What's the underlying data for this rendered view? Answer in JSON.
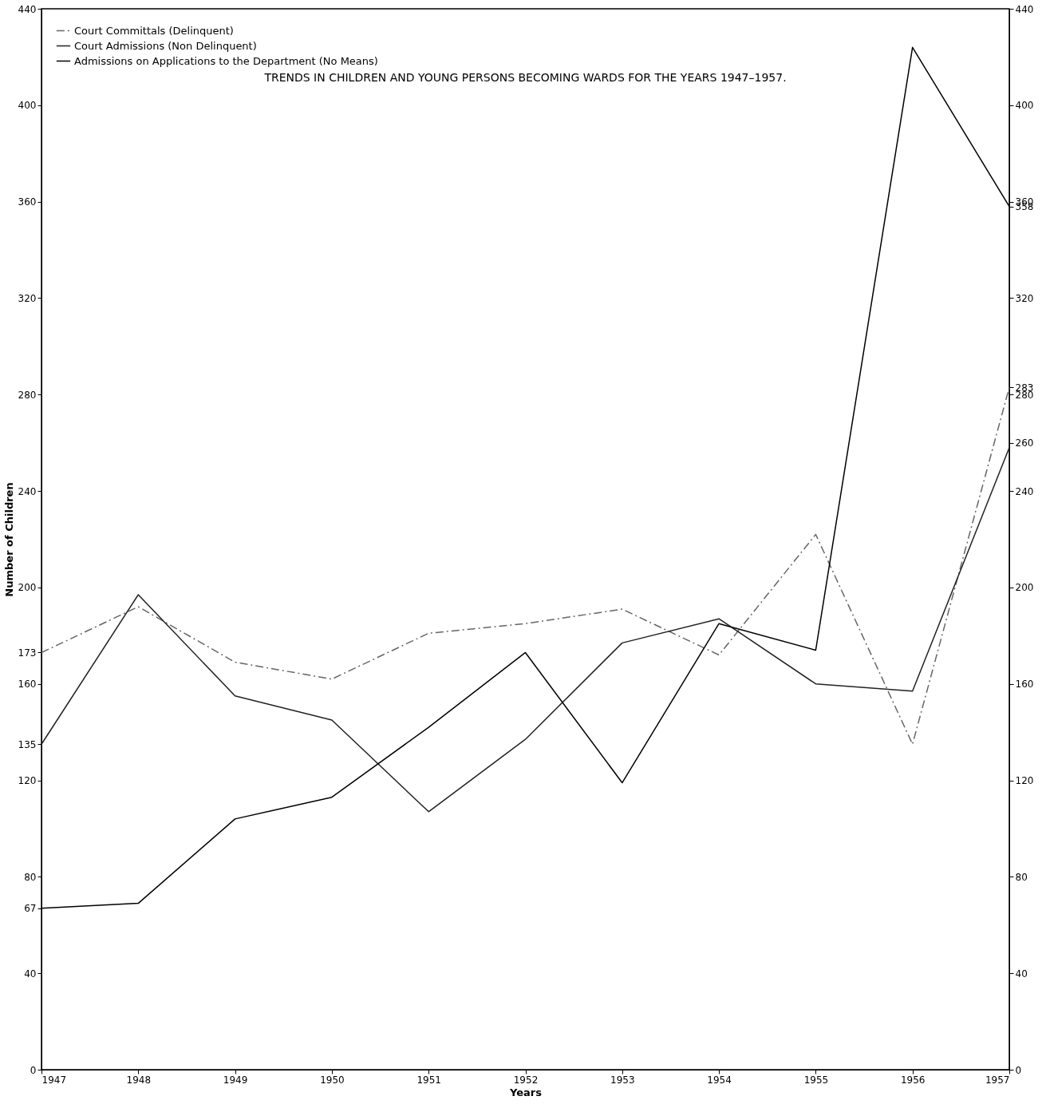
{
  "chart_data": {
    "type": "line",
    "title": "TRENDS IN CHILDREN AND YOUNG PERSONS BECOMING WARDS FOR THE YEARS 1947–1957.",
    "xlabel": "Years",
    "ylabel": "Number of Children",
    "x": [
      1947,
      1948,
      1949,
      1950,
      1951,
      1952,
      1953,
      1954,
      1955,
      1956,
      1957
    ],
    "series": [
      {
        "name": "Court Committals (Delinquent)",
        "color": "#666666",
        "line_style": "dashed",
        "values": [
          173,
          192,
          169,
          162,
          181,
          185,
          191,
          172,
          222,
          135,
          283
        ]
      },
      {
        "name": "Court Admissions (Non Delinquent)",
        "color": "#222222",
        "line_style": "solid",
        "values": [
          135,
          197,
          155,
          145,
          107,
          137,
          177,
          187,
          160,
          157,
          258
        ]
      },
      {
        "name": "Admissions on Applications to the Department (No Means)",
        "color": "#000000",
        "line_style": "solid",
        "values": [
          67,
          69,
          104,
          113,
          142,
          173,
          119,
          185,
          174,
          424,
          358
        ]
      }
    ],
    "xlim": [
      1947,
      1957
    ],
    "xticks": [
      1947,
      1948,
      1949,
      1950,
      1951,
      1952,
      1953,
      1954,
      1955,
      1956,
      1957
    ],
    "ylim": [
      0,
      440
    ],
    "yticks": [
      0,
      40,
      67,
      80,
      120,
      135,
      160,
      173,
      200,
      240,
      280,
      320,
      360,
      400,
      440
    ],
    "y2lim": [
      0,
      440
    ],
    "y2ticks": [
      0,
      40,
      80,
      120,
      160,
      200,
      240,
      260,
      280,
      283,
      320,
      358,
      360,
      400,
      440
    ],
    "grid": false,
    "legend": "top left",
    "marker": "none"
  }
}
